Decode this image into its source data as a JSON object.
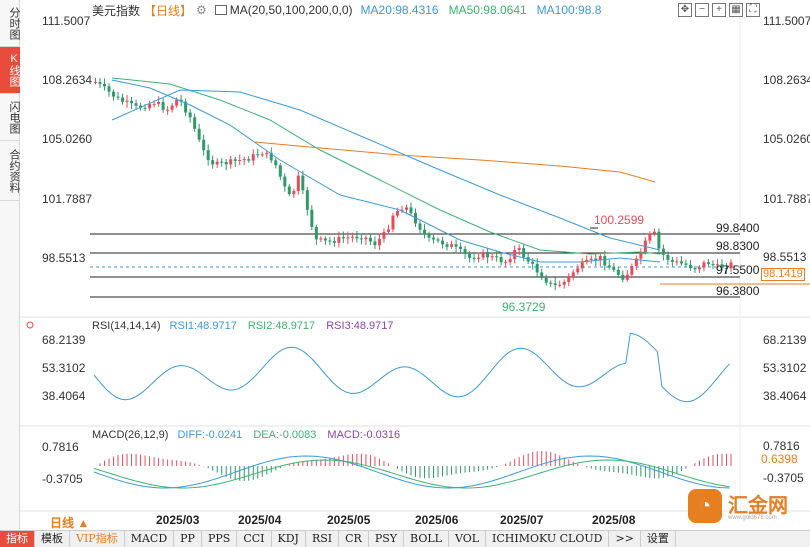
{
  "side_tabs": [
    {
      "label": "分时图",
      "active": false
    },
    {
      "label": "K线图",
      "active": true
    },
    {
      "label": "闪电图",
      "active": false
    },
    {
      "label": "合约资料",
      "active": false
    }
  ],
  "header": {
    "title": "美元指数",
    "period": "【日线】",
    "ma_label": "MA(20,50,100,200,0,0)",
    "ma20": "MA20:98.4316",
    "ma50": "MA50:98.0641",
    "ma100": "MA100:98.8"
  },
  "toolbar_icons": [
    "move-icon",
    "zoom-out-icon",
    "zoom-in-icon",
    "grid-icon",
    "fullscreen-icon"
  ],
  "price_axis": {
    "left": [
      "111.5007",
      "108.2634",
      "105.0260",
      "101.7887",
      "98.5513"
    ],
    "right": [
      "111.5007",
      "108.2634",
      "105.0260",
      "101.7887",
      "98.5513"
    ],
    "current_tag": "98.1419"
  },
  "levels": [
    "99.8400",
    "98.8300",
    "97.5500",
    "96.3800"
  ],
  "annotations": {
    "peak": "100.2599",
    "trough": "96.3729"
  },
  "rsi": {
    "label": "RSI(14,14,14)",
    "rsi1": "RSI1:48.9717",
    "rsi2": "RSI2:48.9717",
    "rsi3": "RSI3:48.9717",
    "axis_left": [
      "68.2139",
      "53.3102",
      "38.4064"
    ],
    "axis_right": [
      "68.2139",
      "53.3102",
      "38.4064"
    ]
  },
  "macd": {
    "label": "MACD(26,12,9)",
    "diff": "DIFF:-0.0241",
    "dea": "DEA:-0.0083",
    "macd": "MACD:-0.0316",
    "axis_left": [
      "0.7816",
      "-0.3705"
    ],
    "axis_right": [
      "0.7816",
      "-0.3705"
    ],
    "current_tag": "0.6398"
  },
  "dates": [
    "2025/03",
    "2025/04",
    "2025/05",
    "2025/06",
    "2025/07",
    "2025/08"
  ],
  "period_selector": "日线 ▲",
  "bottom_tabs": [
    {
      "label": "指标",
      "active": true,
      "vip": false
    },
    {
      "label": "模板",
      "active": false,
      "vip": false
    },
    {
      "label": "VIP指标",
      "active": false,
      "vip": true
    },
    {
      "label": "MACD",
      "active": false,
      "vip": false
    },
    {
      "label": "PP",
      "active": false,
      "vip": false
    },
    {
      "label": "PPS",
      "active": false,
      "vip": false
    },
    {
      "label": "CCI",
      "active": false,
      "vip": false
    },
    {
      "label": "KDJ",
      "active": false,
      "vip": false
    },
    {
      "label": "RSI",
      "active": false,
      "vip": false
    },
    {
      "label": "CR",
      "active": false,
      "vip": false
    },
    {
      "label": "PSY",
      "active": false,
      "vip": false
    },
    {
      "label": "BOLL",
      "active": false,
      "vip": false
    },
    {
      "label": "VOL",
      "active": false,
      "vip": false
    },
    {
      "label": "ICHIMOKU CLOUD",
      "active": false,
      "vip": false
    },
    {
      "label": ">>",
      "active": false,
      "vip": false
    },
    {
      "label": "设置",
      "active": false,
      "vip": false
    }
  ],
  "logo": {
    "text": "汇金网",
    "sub": "www.gold678.com"
  },
  "colors": {
    "up": "#e74c5a",
    "down": "#2e9a6a",
    "ma20": "#3d9ad8",
    "ma50": "#3cb371",
    "ma200": "#e67e22",
    "accent": "#e74c3c"
  }
}
